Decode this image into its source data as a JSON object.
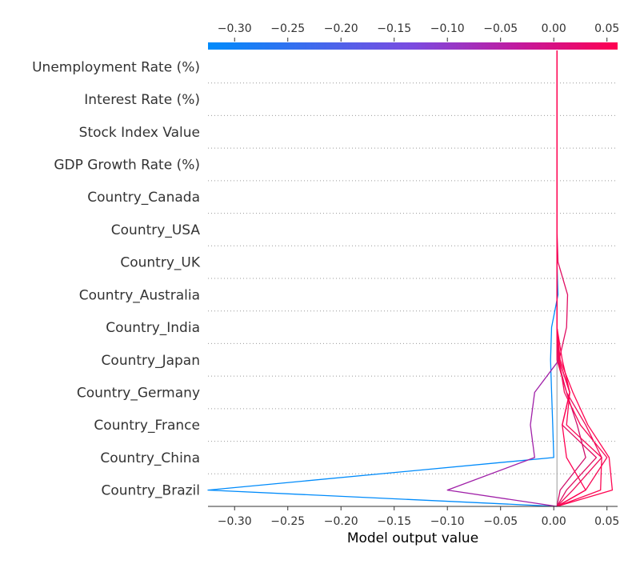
{
  "chart_data": {
    "type": "line",
    "xlabel": "Model output value",
    "xlim": [
      -0.325,
      0.06
    ],
    "x_ticks": [
      -0.3,
      -0.25,
      -0.2,
      -0.15,
      -0.1,
      -0.05,
      0.0,
      0.05
    ],
    "x_tick_labels": [
      "−0.30",
      "−0.25",
      "−0.20",
      "−0.15",
      "−0.10",
      "−0.05",
      "0.00",
      "0.05"
    ],
    "features": [
      "Unemployment Rate (%)",
      "Interest Rate (%)",
      "Stock Index Value",
      "GDP Growth Rate (%)",
      "Country_Canada",
      "Country_USA",
      "Country_UK",
      "Country_Australia",
      "Country_India",
      "Country_Japan",
      "Country_Germany",
      "Country_France",
      "Country_China",
      "Country_Brazil"
    ],
    "base_value": 0.003,
    "colormap": [
      "#008bfb",
      "#ff0051"
    ],
    "series": [
      {
        "values": [
          0.003,
          0.003,
          0.003,
          0.003,
          0.003,
          0.003,
          0.003,
          0.004,
          -0.002,
          -0.003,
          -0.002,
          -0.001,
          0.0,
          -0.325
        ],
        "color": "#008bfb"
      },
      {
        "values": [
          0.003,
          0.003,
          0.003,
          0.003,
          0.003,
          0.003,
          0.003,
          0.003,
          0.003,
          0.005,
          -0.018,
          -0.022,
          -0.018,
          -0.1
        ],
        "color": "#a020a8"
      },
      {
        "values": [
          0.003,
          0.003,
          0.003,
          0.003,
          0.003,
          0.003,
          0.003,
          0.003,
          0.003,
          0.004,
          0.012,
          0.022,
          0.03,
          0.006
        ],
        "color": "#d0106c"
      },
      {
        "values": [
          0.003,
          0.003,
          0.003,
          0.003,
          0.003,
          0.003,
          0.004,
          0.013,
          0.012,
          0.005,
          0.015,
          0.008,
          0.04,
          0.012
        ],
        "color": "#e00e62"
      },
      {
        "values": [
          0.003,
          0.003,
          0.003,
          0.003,
          0.003,
          0.003,
          0.003,
          0.003,
          0.003,
          0.003,
          0.012,
          0.03,
          0.045,
          0.018
        ],
        "color": "#ef0c5a"
      },
      {
        "values": [
          0.003,
          0.003,
          0.003,
          0.003,
          0.003,
          0.003,
          0.003,
          0.003,
          0.003,
          0.005,
          0.01,
          0.025,
          0.05,
          0.03
        ],
        "color": "#f70a56"
      },
      {
        "values": [
          0.003,
          0.003,
          0.003,
          0.003,
          0.003,
          0.003,
          0.003,
          0.003,
          0.003,
          0.005,
          0.015,
          0.012,
          0.045,
          0.044
        ],
        "color": "#fb0854"
      },
      {
        "values": [
          0.003,
          0.003,
          0.003,
          0.003,
          0.003,
          0.003,
          0.003,
          0.003,
          0.003,
          0.006,
          0.018,
          0.032,
          0.052,
          0.055
        ],
        "color": "#ff0652"
      },
      {
        "values": [
          0.003,
          0.003,
          0.003,
          0.003,
          0.003,
          0.003,
          0.003,
          0.003,
          0.003,
          0.008,
          0.015,
          0.008,
          0.012,
          0.03
        ],
        "color": "#ff0051"
      }
    ]
  }
}
